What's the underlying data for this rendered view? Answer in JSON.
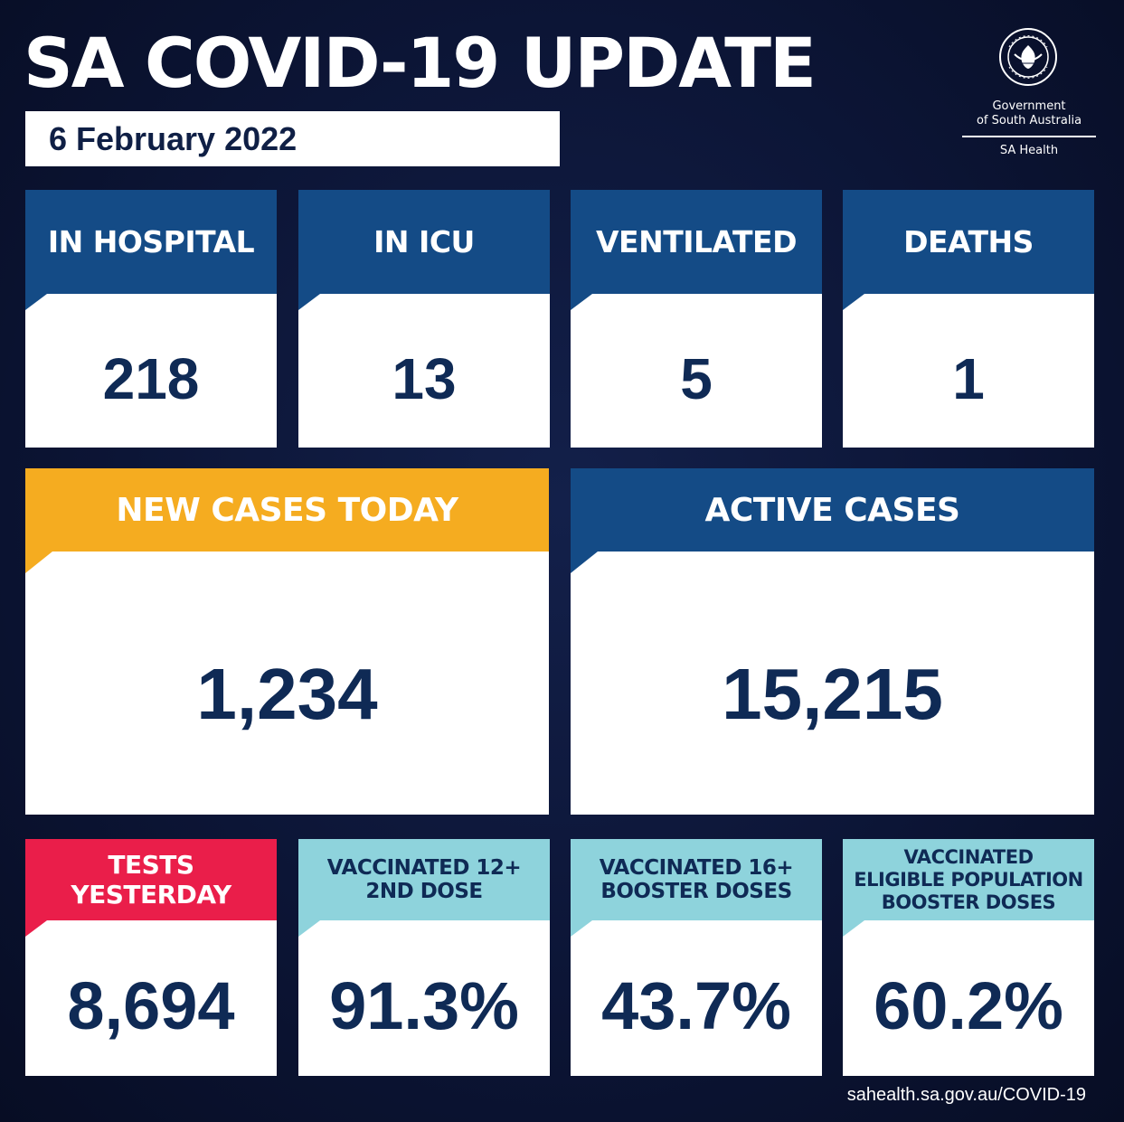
{
  "header": {
    "title": "SA COVID-19 UPDATE",
    "date": "6 February 2022"
  },
  "logo": {
    "seal_icon": "south-australia-seal-icon",
    "seal_text": "SOUTH AUSTRALIA",
    "line1": "Government",
    "line2": "of South Australia",
    "department": "SA Health"
  },
  "stats": {
    "in_hospital": {
      "label": "IN HOSPITAL",
      "value": "218"
    },
    "in_icu": {
      "label": "IN ICU",
      "value": "13"
    },
    "ventilated": {
      "label": "VENTILATED",
      "value": "5"
    },
    "deaths": {
      "label": "DEATHS",
      "value": "1"
    },
    "new_cases": {
      "label": "NEW CASES TODAY",
      "value": "1,234"
    },
    "active_cases": {
      "label": "ACTIVE CASES",
      "value": "15,215"
    },
    "tests": {
      "label_line1": "TESTS",
      "label_line2": "YESTERDAY",
      "value": "8,694"
    },
    "vacc_12": {
      "label_line1": "VACCINATED 12+",
      "label_line2": "2ND DOSE",
      "value": "91.3%"
    },
    "vacc_16": {
      "label_line1": "VACCINATED 16+",
      "label_line2": "BOOSTER DOSES",
      "value": "43.7%"
    },
    "vacc_eligible": {
      "label_line1": "VACCINATED",
      "label_line2": "ELIGIBLE POPULATION",
      "label_line3": "BOOSTER DOSES",
      "value": "60.2%"
    }
  },
  "colors": {
    "navy_bg": "#0c1536",
    "header_blue": "#144b86",
    "orange": "#f5ac20",
    "red": "#ea1e4a",
    "teal": "#8ed3dc",
    "value_text": "#0f2a55"
  },
  "footer": {
    "url": "sahealth.sa.gov.au/COVID-19"
  }
}
